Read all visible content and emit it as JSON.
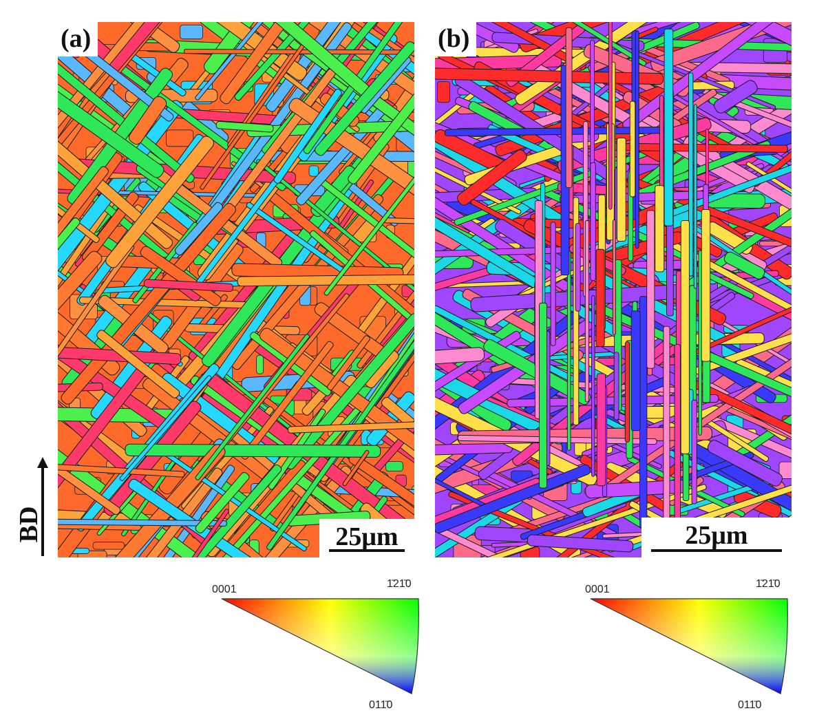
{
  "panels": [
    {
      "label": "(a)",
      "scalebar": "25μm",
      "palette": [
        "#ff6a2a",
        "#ff7a30",
        "#2ee85a",
        "#4cf04c",
        "#ffa23a",
        "#24d8ff",
        "#ff3a6a",
        "#5ab8ff",
        "#ff9040"
      ]
    },
    {
      "label": "(b)",
      "scalebar": "25μm",
      "palette": [
        "#a046ff",
        "#3a3aff",
        "#ff3aa0",
        "#ff6a8a",
        "#2ee85a",
        "#1ad8e8",
        "#ffe04a",
        "#ff2a2a",
        "#c84aff",
        "#ff8ad0"
      ]
    }
  ],
  "build_direction": "BD",
  "ipf_key": {
    "corner_top_left": "0001",
    "corner_top_right": "1̄21̄0",
    "corner_bottom": "011̄0"
  }
}
